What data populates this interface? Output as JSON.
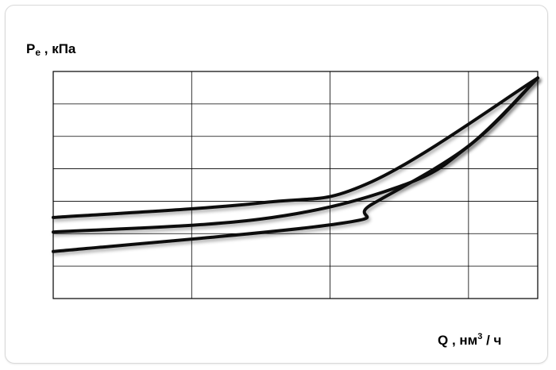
{
  "chart_data": {
    "type": "line",
    "title": "",
    "ylabel": {
      "main": "P",
      "sub": "e",
      "rest": " , кПа"
    },
    "xlabel": {
      "main": "Q , нм",
      "sup": "3",
      "rest": " / ч"
    },
    "xlim": [
      0,
      3.5
    ],
    "ylim": [
      0,
      7
    ],
    "x_gridlines": [
      0,
      1,
      2,
      3
    ],
    "y_gridlines": [
      0,
      1,
      2,
      3,
      4,
      5,
      6,
      7
    ],
    "grid": true,
    "tick_labels_shown": false,
    "series": [
      {
        "points": [
          [
            0,
            2.5
          ],
          [
            1.5,
            2.95
          ],
          [
            2.3,
            3.6
          ],
          [
            3.5,
            6.8
          ]
        ]
      },
      {
        "points": [
          [
            0,
            2.05
          ],
          [
            1.5,
            2.45
          ],
          [
            2.5,
            3.45
          ],
          [
            3.0,
            4.7
          ],
          [
            3.5,
            6.8
          ]
        ]
      },
      {
        "points": [
          [
            0,
            1.45
          ],
          [
            2.05,
            2.3
          ],
          [
            2.3,
            2.9
          ],
          [
            3.0,
            4.7
          ],
          [
            3.5,
            6.8
          ]
        ]
      }
    ],
    "colors": {
      "line": "#111111",
      "grid": "#000000"
    }
  }
}
